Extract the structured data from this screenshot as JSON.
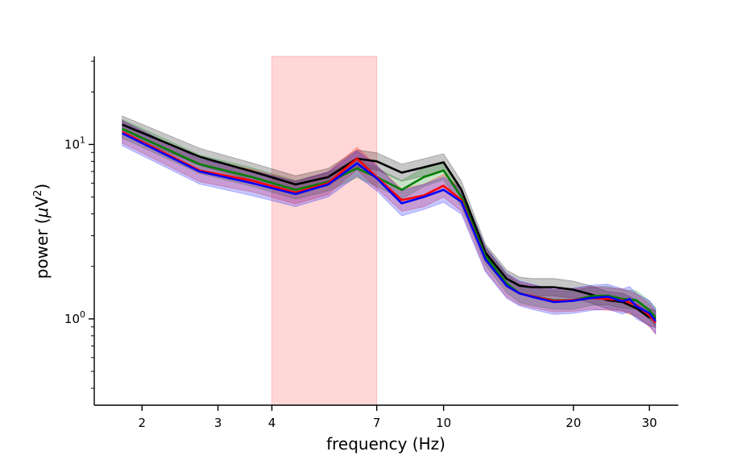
{
  "chart_data": {
    "type": "line",
    "xlabel": "frequency (Hz)",
    "ylabel_main": "power (",
    "ylabel_mu": "μ",
    "ylabel_v": "V",
    "ylabel_exp": "2",
    "ylabel_close": ")",
    "xscale": "log",
    "yscale": "log",
    "xlim": [
      1.55,
      35
    ],
    "ylim": [
      0.32,
      32
    ],
    "x_ticks": [
      {
        "value": 2,
        "label": "2"
      },
      {
        "value": 3,
        "label": "3"
      },
      {
        "value": 4,
        "label": "4"
      },
      {
        "value": 7,
        "label": "7"
      },
      {
        "value": 10,
        "label": "10"
      },
      {
        "value": 20,
        "label": "20"
      },
      {
        "value": 30,
        "label": "30"
      }
    ],
    "y_ticks": [
      {
        "value": 1,
        "base": "10",
        "exp": "0"
      },
      {
        "value": 10,
        "base": "10",
        "exp": "1"
      }
    ],
    "shaded_band": {
      "x_start": 4,
      "x_end": 7,
      "color": "#ff9a9a"
    },
    "grid": false,
    "series": [
      {
        "color": "#000000",
        "x": [
          1.8,
          2.72,
          3.6,
          4.54,
          5.4,
          6.3,
          7.0,
          8.0,
          9.0,
          10.0,
          11.0,
          12.5,
          14.0,
          15.0,
          16.0,
          18.0,
          20.0,
          22.0,
          24.0,
          26.0,
          28.0,
          30.0,
          31.0
        ],
        "y": [
          13.0,
          8.5,
          7.0,
          5.9,
          6.5,
          8.3,
          8.0,
          6.9,
          7.4,
          7.9,
          5.5,
          2.4,
          1.7,
          1.55,
          1.52,
          1.52,
          1.47,
          1.38,
          1.28,
          1.25,
          1.15,
          1.02,
          1.0
        ],
        "band": 0.12
      },
      {
        "color": "#008000",
        "x": [
          1.8,
          2.72,
          3.6,
          4.54,
          5.4,
          6.3,
          7.0,
          8.0,
          9.0,
          10.0,
          11.0,
          12.5,
          14.0,
          15.0,
          16.0,
          18.0,
          20.0,
          22.0,
          24.0,
          26.0,
          28.0,
          30.0,
          31.0
        ],
        "y": [
          12.3,
          7.7,
          6.5,
          5.5,
          6.1,
          7.3,
          6.5,
          5.5,
          6.5,
          7.1,
          5.0,
          2.3,
          1.6,
          1.4,
          1.35,
          1.28,
          1.28,
          1.35,
          1.36,
          1.3,
          1.28,
          1.12,
          1.02
        ],
        "band": 0.13
      },
      {
        "color": "#ff0000",
        "x": [
          1.8,
          2.72,
          3.6,
          4.54,
          5.4,
          6.3,
          7.0,
          8.0,
          9.0,
          10.0,
          11.0,
          12.5,
          14.0,
          15.0,
          16.0,
          18.0,
          20.0,
          22.0,
          24.0,
          26.0,
          28.0,
          30.0,
          31.0
        ],
        "y": [
          11.8,
          7.1,
          6.2,
          5.3,
          6.0,
          8.3,
          6.5,
          4.8,
          5.1,
          5.8,
          4.8,
          2.2,
          1.55,
          1.4,
          1.35,
          1.27,
          1.28,
          1.32,
          1.3,
          1.28,
          1.2,
          1.05,
          0.95
        ],
        "band": 0.16
      },
      {
        "color": "#0000ff",
        "x": [
          1.8,
          2.72,
          3.6,
          4.54,
          5.4,
          6.3,
          7.0,
          8.0,
          9.0,
          10.0,
          11.0,
          12.5,
          14.0,
          15.0,
          16.0,
          18.0,
          20.0,
          22.0,
          24.0,
          26.0,
          27.0,
          28.0,
          30.0,
          31.0
        ],
        "y": [
          11.6,
          7.0,
          6.0,
          5.2,
          5.9,
          7.8,
          6.4,
          4.6,
          5.0,
          5.5,
          4.7,
          2.2,
          1.55,
          1.4,
          1.34,
          1.25,
          1.27,
          1.32,
          1.34,
          1.26,
          1.3,
          1.18,
          1.08,
          0.97
        ],
        "band": 0.18
      }
    ]
  }
}
